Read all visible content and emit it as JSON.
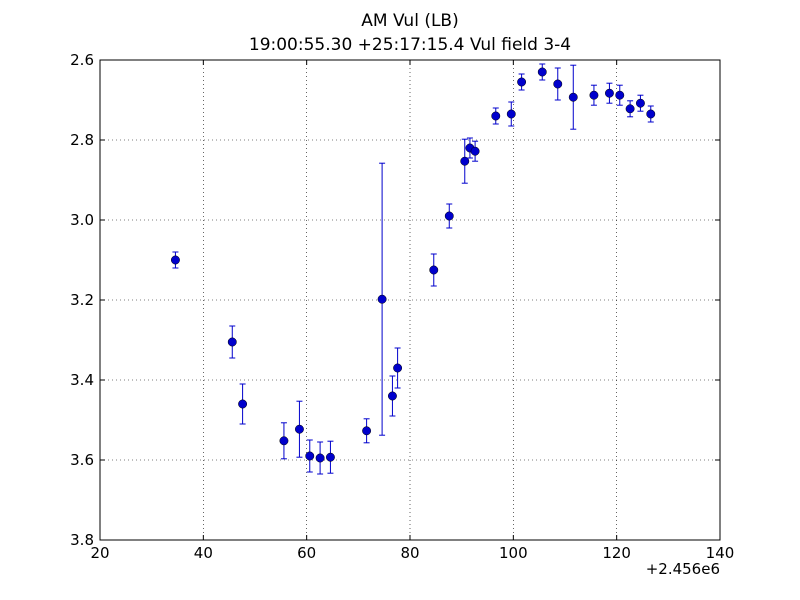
{
  "chart_data": {
    "type": "scatter",
    "title": "AM Vul (LB)",
    "subtitle": "19:00:55.30 +25:17:15.4 Vul field 3-4",
    "xlabel": "",
    "ylabel": "",
    "x_offset_label": "+2.456e6",
    "xlim": [
      20,
      140
    ],
    "ylim": [
      2.6,
      3.8
    ],
    "y_inverted": true,
    "grid": true,
    "x_ticks": [
      "20",
      "40",
      "60",
      "80",
      "100",
      "120",
      "140"
    ],
    "y_ticks": [
      "2.6",
      "2.8",
      "3.0",
      "3.2",
      "3.4",
      "3.6",
      "3.8"
    ],
    "marker_color": "#0000cc",
    "series": [
      {
        "points": [
          {
            "x": 34.6,
            "y": 3.1,
            "err": 0.02
          },
          {
            "x": 45.6,
            "y": 3.305,
            "err": 0.04
          },
          {
            "x": 47.6,
            "y": 3.46,
            "err": 0.05
          },
          {
            "x": 55.6,
            "y": 3.552,
            "err": 0.045
          },
          {
            "x": 58.6,
            "y": 3.523,
            "err": 0.07
          },
          {
            "x": 60.6,
            "y": 3.59,
            "err": 0.04
          },
          {
            "x": 62.6,
            "y": 3.595,
            "err": 0.04
          },
          {
            "x": 64.6,
            "y": 3.593,
            "err": 0.04
          },
          {
            "x": 71.6,
            "y": 3.527,
            "err": 0.03
          },
          {
            "x": 74.6,
            "y": 3.198,
            "err": 0.34
          },
          {
            "x": 76.6,
            "y": 3.44,
            "err": 0.05
          },
          {
            "x": 77.6,
            "y": 3.37,
            "err": 0.05
          },
          {
            "x": 84.6,
            "y": 3.125,
            "err": 0.04
          },
          {
            "x": 87.6,
            "y": 2.99,
            "err": 0.03
          },
          {
            "x": 90.6,
            "y": 2.853,
            "err": 0.055
          },
          {
            "x": 91.6,
            "y": 2.82,
            "err": 0.025
          },
          {
            "x": 92.6,
            "y": 2.828,
            "err": 0.025
          },
          {
            "x": 96.6,
            "y": 2.74,
            "err": 0.02
          },
          {
            "x": 99.6,
            "y": 2.735,
            "err": 0.03
          },
          {
            "x": 101.6,
            "y": 2.655,
            "err": 0.02
          },
          {
            "x": 105.6,
            "y": 2.63,
            "err": 0.02
          },
          {
            "x": 108.6,
            "y": 2.66,
            "err": 0.04
          },
          {
            "x": 111.6,
            "y": 2.693,
            "err": 0.08
          },
          {
            "x": 115.6,
            "y": 2.688,
            "err": 0.025
          },
          {
            "x": 118.6,
            "y": 2.683,
            "err": 0.025
          },
          {
            "x": 120.6,
            "y": 2.688,
            "err": 0.025
          },
          {
            "x": 122.6,
            "y": 2.722,
            "err": 0.02
          },
          {
            "x": 124.6,
            "y": 2.708,
            "err": 0.02
          },
          {
            "x": 126.6,
            "y": 2.735,
            "err": 0.02
          }
        ]
      }
    ]
  }
}
